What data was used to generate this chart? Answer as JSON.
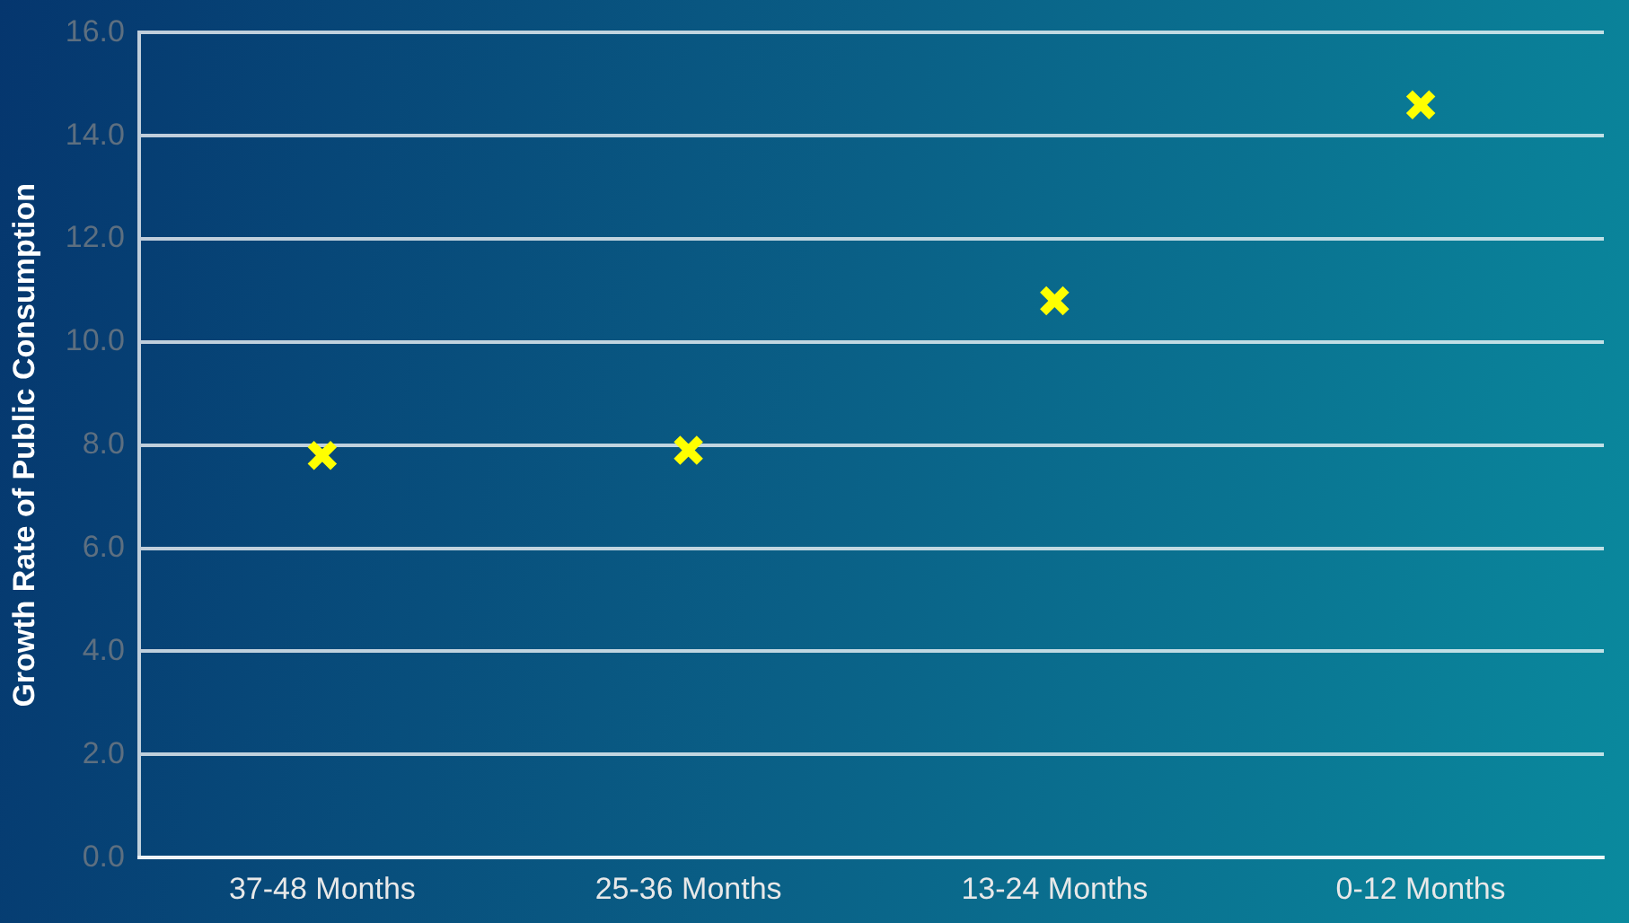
{
  "chart_data": {
    "type": "scatter",
    "ylabel": "Growth Rate of Public Consumption",
    "categories": [
      "37-48 Months",
      "25-36 Months",
      "13-24 Months",
      "0-12 Months"
    ],
    "series": [
      {
        "color": "#ffff00",
        "values": [
          7.8,
          7.9,
          10.8,
          14.6
        ]
      }
    ],
    "ylim": [
      0,
      16
    ],
    "yticks": [
      {
        "value": 0,
        "label": "0.0"
      },
      {
        "value": 2,
        "label": "2.0"
      },
      {
        "value": 4,
        "label": "4.0"
      },
      {
        "value": 6,
        "label": "6.0"
      },
      {
        "value": 8,
        "label": "8.0"
      },
      {
        "value": 10,
        "label": "10.0"
      },
      {
        "value": 12,
        "label": "12.0"
      },
      {
        "value": 14,
        "label": "14.0"
      },
      {
        "value": 16,
        "label": "16.0"
      }
    ],
    "grid": "y",
    "legend": false,
    "marker": "cross"
  }
}
